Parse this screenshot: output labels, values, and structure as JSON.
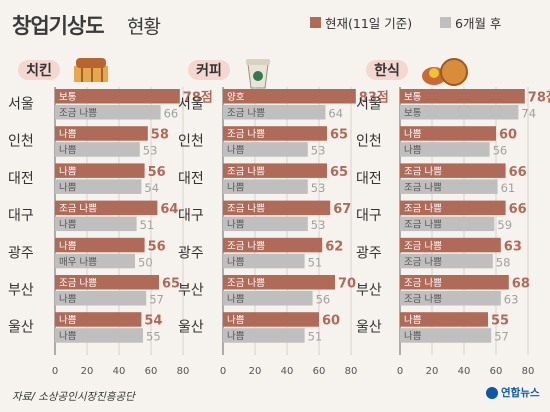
{
  "title": "창업기상도",
  "subtitle": "현황",
  "legend": {
    "current": "현재(11일 기준)",
    "future": "6개월 후",
    "current_color": "#b06a58",
    "future_color": "#bfbfbf"
  },
  "source": "자료/ 소상공인시장진흥공단",
  "brand": "연합뉴스",
  "chart_data": [
    {
      "type": "bar",
      "title": "치킨",
      "icon": "chicken-icon",
      "categories": [
        "서울",
        "인천",
        "대전",
        "대구",
        "광주",
        "부산",
        "울산"
      ],
      "xlim": [
        0,
        80
      ],
      "ticks": [
        0,
        20,
        40,
        60,
        80
      ],
      "series": [
        {
          "name": "현재(11일 기준)",
          "values": [
            78,
            58,
            56,
            64,
            56,
            65,
            54
          ],
          "labels": [
            "보통",
            "나쁨",
            "나쁨",
            "조금 나쁨",
            "나쁨",
            "조금 나쁨",
            "나쁨"
          ],
          "value_labels": [
            "78점",
            "58",
            "56",
            "64",
            "56",
            "65",
            "54"
          ]
        },
        {
          "name": "6개월 후",
          "values": [
            66,
            53,
            54,
            51,
            50,
            57,
            55
          ],
          "labels": [
            "조금 나쁨",
            "나쁨",
            "나쁨",
            "나쁨",
            "매우 나쁨",
            "나쁨",
            "나쁨"
          ],
          "value_labels": [
            "66",
            "53",
            "54",
            "51",
            "50",
            "57",
            "55"
          ]
        }
      ]
    },
    {
      "type": "bar",
      "title": "커피",
      "icon": "coffee-icon",
      "categories": [
        "서울",
        "인천",
        "대전",
        "대구",
        "광주",
        "부산",
        "울산"
      ],
      "xlim": [
        0,
        80
      ],
      "ticks": [
        0,
        20,
        40,
        60,
        80
      ],
      "series": [
        {
          "name": "현재(11일 기준)",
          "values": [
            83,
            65,
            65,
            67,
            62,
            70,
            60
          ],
          "labels": [
            "양호",
            "조금 나쁨",
            "조금 나쁨",
            "조금 나쁨",
            "조금 나쁨",
            "조금 나쁨",
            "나쁨"
          ],
          "value_labels": [
            "83점",
            "65",
            "65",
            "67",
            "62",
            "70",
            "60"
          ]
        },
        {
          "name": "6개월 후",
          "values": [
            64,
            53,
            53,
            53,
            51,
            56,
            51
          ],
          "labels": [
            "조금 나쁨",
            "나쁨",
            "나쁨",
            "나쁨",
            "나쁨",
            "나쁨",
            "나쁨"
          ],
          "value_labels": [
            "64",
            "53",
            "53",
            "53",
            "51",
            "56",
            "51"
          ]
        }
      ]
    },
    {
      "type": "bar",
      "title": "한식",
      "icon": "korean-food-icon",
      "categories": [
        "서울",
        "인천",
        "대전",
        "대구",
        "광주",
        "부산",
        "울산"
      ],
      "xlim": [
        0,
        80
      ],
      "ticks": [
        0,
        20,
        40,
        60,
        80
      ],
      "series": [
        {
          "name": "현재(11일 기준)",
          "values": [
            78,
            60,
            66,
            66,
            63,
            68,
            55
          ],
          "labels": [
            "보통",
            "나쁨",
            "조금 나쁨",
            "조금 나쁨",
            "조금 나쁨",
            "조금 나쁨",
            "나쁨"
          ],
          "value_labels": [
            "78점",
            "60",
            "66",
            "66",
            "63",
            "68",
            "55"
          ]
        },
        {
          "name": "6개월 후",
          "values": [
            74,
            56,
            61,
            59,
            58,
            63,
            57
          ],
          "labels": [
            "보통",
            "나쁨",
            "조금 나쁨",
            "조금 나쁨",
            "조금 나쁨",
            "조금 나쁨",
            "나쁨"
          ],
          "value_labels": [
            "74",
            "56",
            "61",
            "59",
            "58",
            "63",
            "57"
          ]
        }
      ]
    }
  ]
}
